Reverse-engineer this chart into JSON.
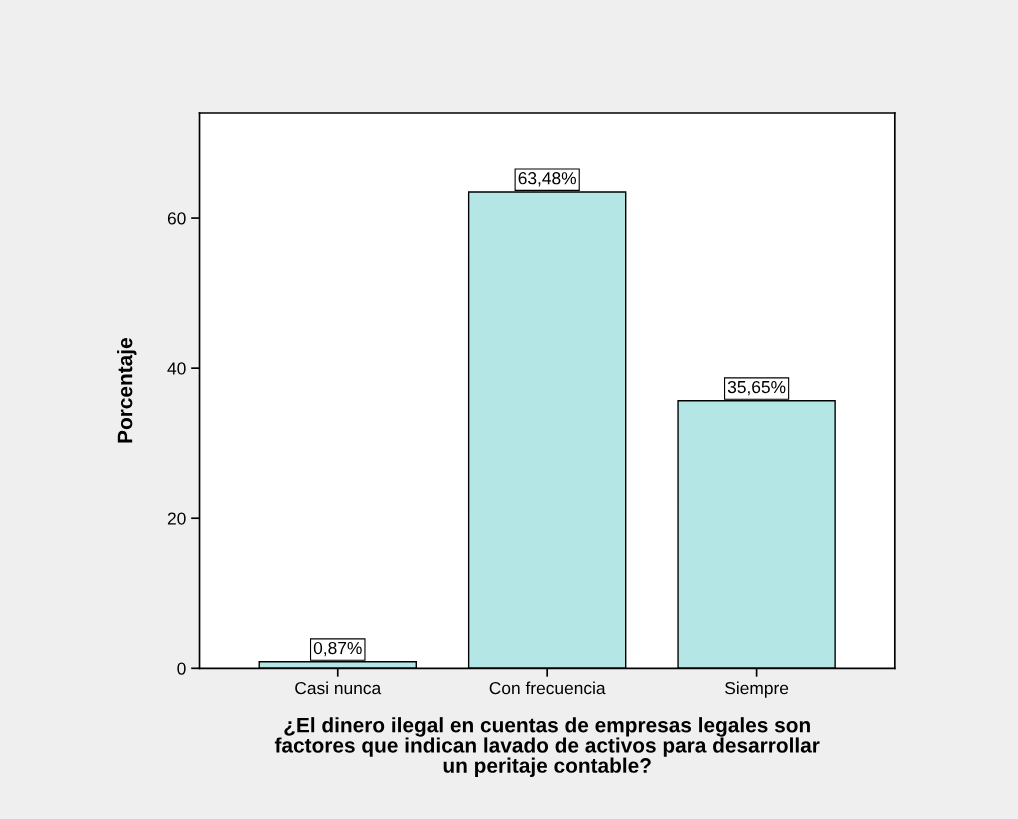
{
  "chart_data": {
    "type": "bar",
    "ylabel": "Porcentaje",
    "xlabel": "¿El dinero ilegal en cuentas de empresas legales son\nfactores que indican lavado de activos para desarrollar\nun peritaje contable?",
    "categories": [
      "Casi nunca",
      "Con frecuencia",
      "Siempre"
    ],
    "values": [
      0.87,
      63.48,
      35.65
    ],
    "value_labels": [
      "0,87%",
      "63,48%",
      "35,65%"
    ],
    "color": "#b4e6e6",
    "ylim": [
      0,
      74
    ],
    "yticks": [
      0,
      20,
      40,
      60
    ]
  }
}
